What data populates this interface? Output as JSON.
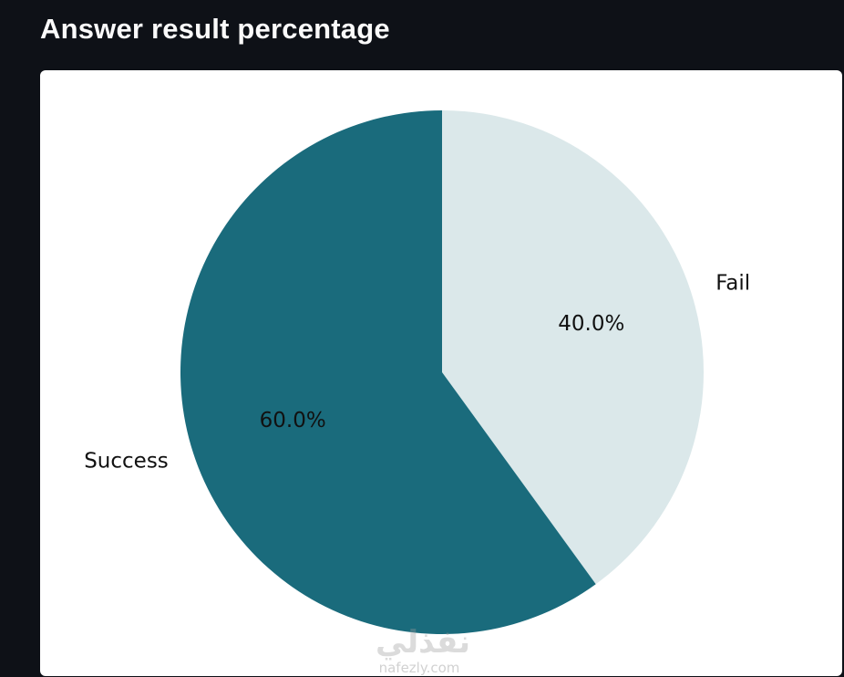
{
  "page": {
    "title": "Answer result percentage"
  },
  "watermark": {
    "arabic": "نفذلي",
    "latin": "nafezly.com"
  },
  "chart_data": {
    "type": "pie",
    "title": "",
    "categories": [
      "Fail",
      "Success"
    ],
    "values": [
      40.0,
      60.0
    ],
    "data_labels": [
      "40.0%",
      "60.0%"
    ],
    "colors": [
      "#dbe8ea",
      "#1a6b7c"
    ],
    "start_angle_deg": 90,
    "direction": "clockwise",
    "legend": "none"
  }
}
